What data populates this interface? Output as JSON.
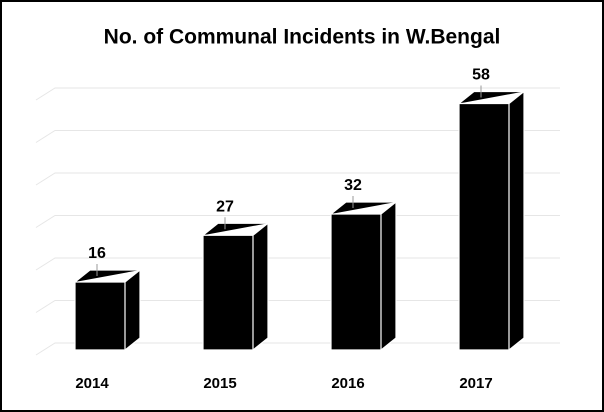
{
  "chart_data": {
    "type": "bar",
    "title": "No. of Communal Incidents in W.Bengal",
    "categories": [
      "2014",
      "2015",
      "2016",
      "2017"
    ],
    "values": [
      16,
      27,
      32,
      58
    ],
    "color": "#000000",
    "ylim": [
      0,
      60
    ],
    "yticks": [
      0,
      10,
      20,
      30,
      40,
      50,
      60
    ],
    "grid": true
  }
}
